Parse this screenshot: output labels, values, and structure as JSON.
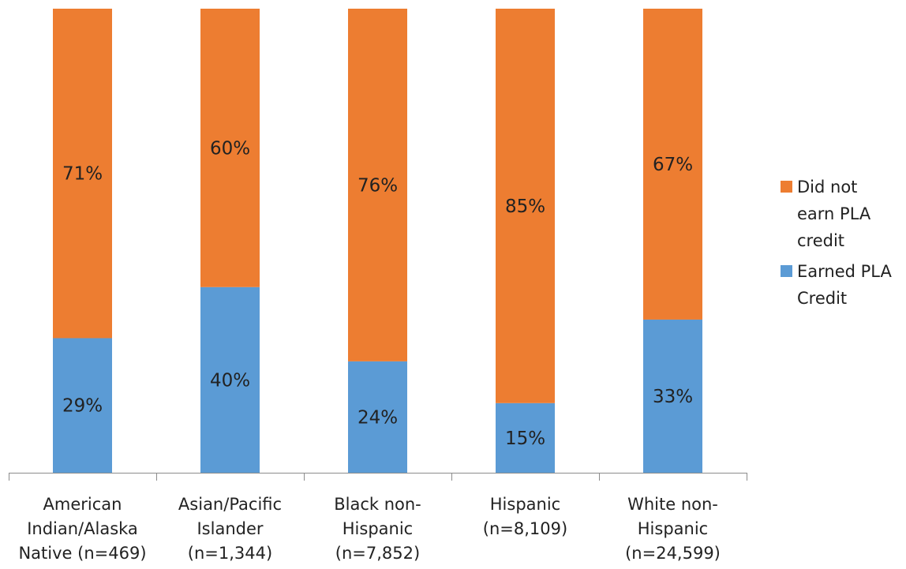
{
  "chart_data": {
    "type": "bar",
    "stacked": true,
    "percent_stacked": true,
    "categories": [
      [
        "American",
        "Indian/Alaska",
        "Native (n=469)"
      ],
      [
        "Asian/Pacific",
        "Islander",
        "(n=1,344)"
      ],
      [
        "Black non-",
        "Hispanic",
        "(n=7,852)"
      ],
      [
        "Hispanic",
        "(n=8,109)"
      ],
      [
        "White non-",
        "Hispanic",
        "(n=24,599)"
      ]
    ],
    "series": [
      {
        "name": "Earned PLA Credit",
        "legend_lines": [
          "Earned PLA",
          "Credit"
        ],
        "color": "#5B9BD5",
        "values": [
          29,
          40,
          24,
          15,
          33
        ],
        "labels": [
          "29%",
          "40%",
          "24%",
          "15%",
          "33%"
        ]
      },
      {
        "name": "Did not earn PLA credit",
        "legend_lines": [
          "Did not",
          "earn PLA",
          "credit"
        ],
        "color": "#ED7D31",
        "values": [
          71,
          60,
          76,
          85,
          67
        ],
        "labels": [
          "71%",
          "60%",
          "76%",
          "85%",
          "67%"
        ]
      }
    ],
    "ylim": [
      0,
      100
    ],
    "legend_position": "right",
    "grid": false
  }
}
